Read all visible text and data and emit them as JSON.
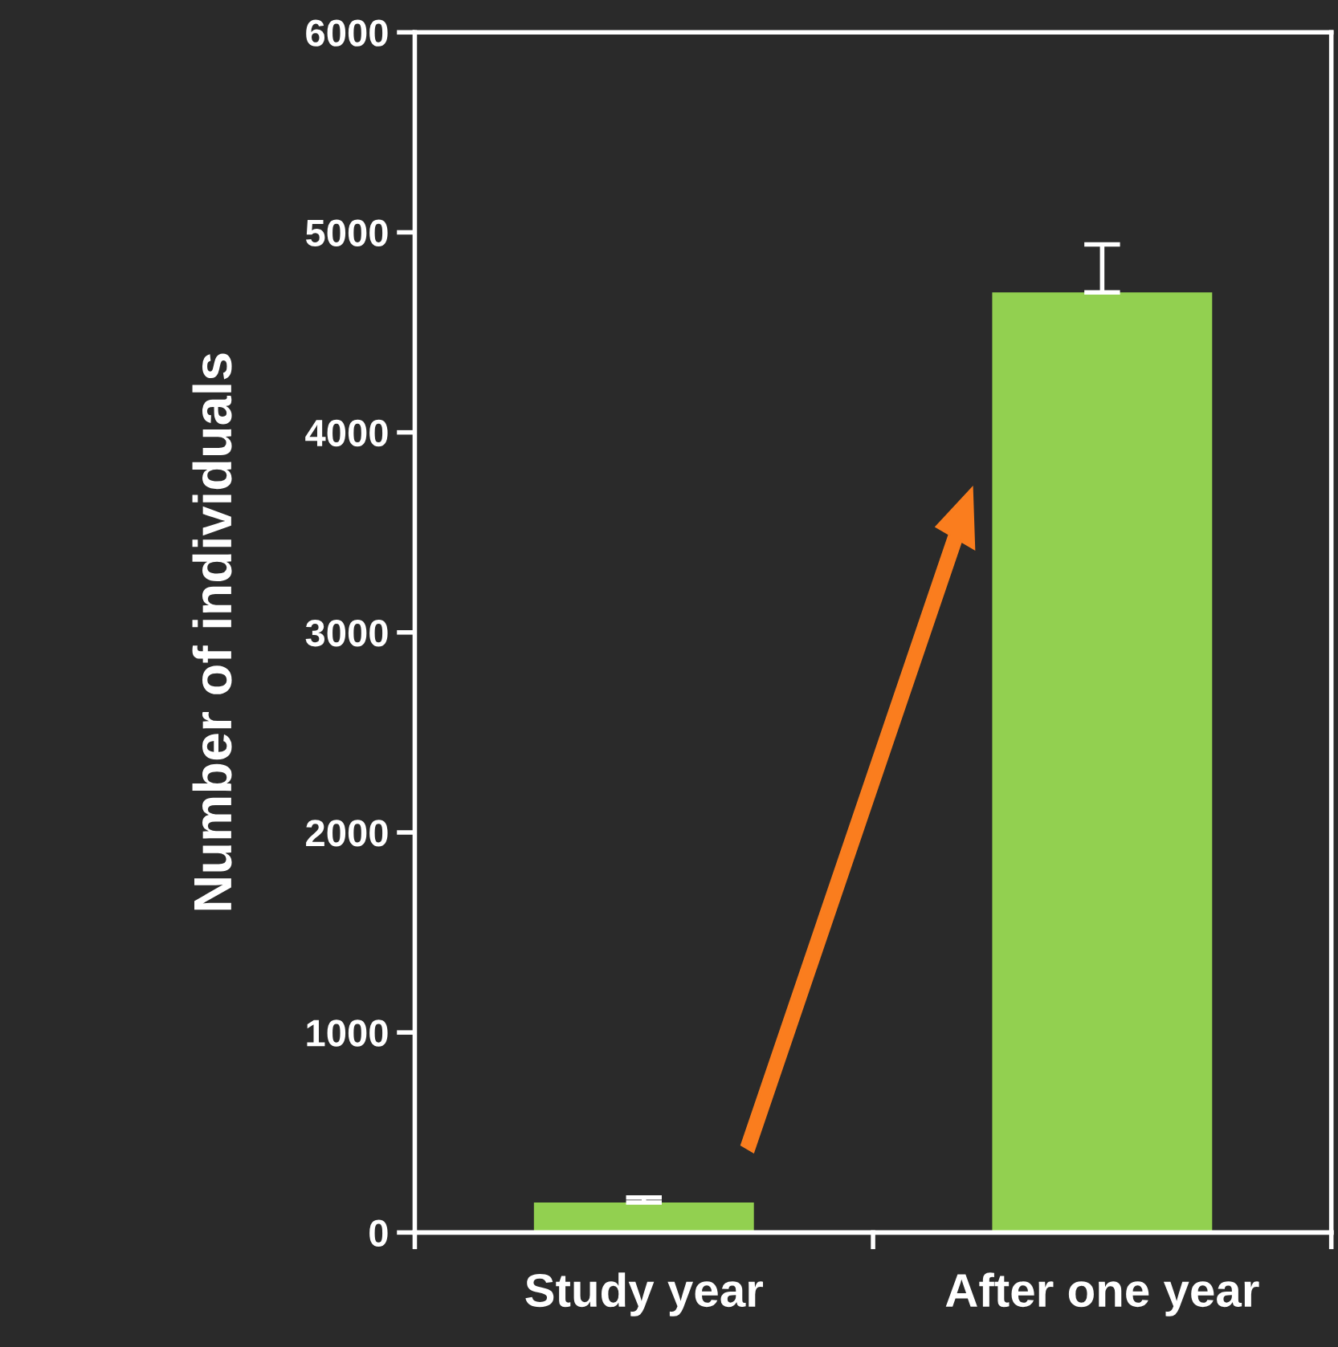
{
  "chart_data": {
    "type": "bar",
    "ylabel": "Number of individuals",
    "categories": [
      "Study year",
      "After one year"
    ],
    "values": [
      150,
      4700
    ],
    "errors": [
      [
        150,
        175
      ],
      [
        4700,
        4940
      ]
    ],
    "color": "#92d050",
    "ylim": [
      0,
      6000
    ],
    "yticks": [
      0,
      1000,
      2000,
      3000,
      4000,
      5000,
      6000
    ],
    "grid": false,
    "legend": false
  }
}
